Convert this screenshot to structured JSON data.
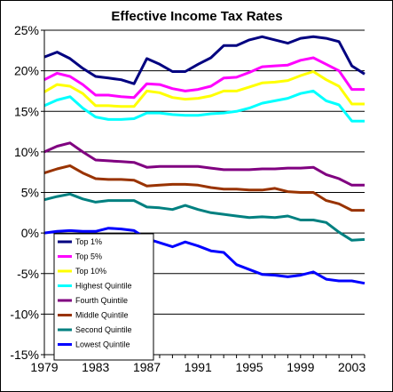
{
  "chart_data": {
    "type": "line",
    "title": "Effective Income Tax Rates",
    "xlabel": "",
    "ylabel": "",
    "x": [
      1979,
      1980,
      1981,
      1982,
      1983,
      1984,
      1985,
      1986,
      1987,
      1988,
      1989,
      1990,
      1991,
      1992,
      1993,
      1994,
      1995,
      1996,
      1997,
      1998,
      1999,
      2000,
      2001,
      2002,
      2003,
      2004
    ],
    "xticks": [
      1979,
      1983,
      1987,
      1991,
      1995,
      1999,
      2003
    ],
    "xtick_labels": [
      "1979",
      "1983",
      "1987",
      "1991",
      "1995",
      "1999",
      "2003"
    ],
    "xlim": [
      1979,
      2004
    ],
    "ylim": [
      -15,
      25
    ],
    "yticks": [
      -15,
      -10,
      -5,
      0,
      5,
      10,
      15,
      20,
      25
    ],
    "ytick_labels": [
      "-15%",
      "-10%",
      "-5%",
      "0%",
      "5%",
      "10%",
      "15%",
      "20%",
      "25%"
    ],
    "grid": "horizontal",
    "legend_position": "bottom-left",
    "series": [
      {
        "name": "Top 1%",
        "color": "#000080",
        "values": [
          21.7,
          22.3,
          21.5,
          20.3,
          19.3,
          19.1,
          18.9,
          18.4,
          21.5,
          20.8,
          19.9,
          19.9,
          20.8,
          21.6,
          23.1,
          23.1,
          23.8,
          24.2,
          23.8,
          23.4,
          24.0,
          24.2,
          24.0,
          23.6,
          20.6,
          19.6
        ]
      },
      {
        "name": "Top 5%",
        "color": "#ff00ff",
        "values": [
          18.9,
          19.7,
          19.3,
          18.3,
          17.0,
          17.0,
          16.8,
          16.7,
          18.4,
          18.3,
          17.8,
          17.5,
          17.7,
          18.1,
          19.1,
          19.2,
          19.8,
          20.5,
          20.6,
          20.7,
          21.3,
          21.6,
          20.8,
          20.0,
          17.7,
          17.7
        ]
      },
      {
        "name": "Top 10%",
        "color": "#ffff00",
        "values": [
          17.4,
          18.3,
          18.1,
          17.2,
          15.7,
          15.7,
          15.6,
          15.6,
          17.5,
          17.3,
          16.7,
          16.5,
          16.6,
          16.9,
          17.5,
          17.5,
          18.0,
          18.5,
          18.6,
          18.8,
          19.4,
          19.9,
          18.9,
          18.1,
          15.9,
          15.9
        ]
      },
      {
        "name": "Highest Quintile",
        "color": "#00ffff",
        "values": [
          15.7,
          16.4,
          16.8,
          15.4,
          14.3,
          14.0,
          14.0,
          14.1,
          14.8,
          14.8,
          14.6,
          14.5,
          14.5,
          14.7,
          14.8,
          15.0,
          15.4,
          16.0,
          16.3,
          16.6,
          17.2,
          17.5,
          16.3,
          15.8,
          13.8,
          13.8
        ]
      },
      {
        "name": "Fourth Quintile",
        "color": "#800080",
        "values": [
          10.0,
          10.7,
          11.1,
          10.0,
          9.0,
          8.9,
          8.8,
          8.7,
          8.1,
          8.2,
          8.2,
          8.2,
          8.2,
          8.0,
          7.8,
          7.8,
          7.8,
          7.9,
          7.9,
          8.0,
          8.0,
          8.1,
          7.2,
          6.7,
          5.9,
          5.9
        ]
      },
      {
        "name": "Middle Quintile",
        "color": "#993300",
        "values": [
          7.4,
          7.9,
          8.3,
          7.4,
          6.7,
          6.6,
          6.6,
          6.5,
          5.8,
          5.9,
          6.0,
          6.0,
          5.9,
          5.6,
          5.4,
          5.4,
          5.3,
          5.3,
          5.5,
          5.1,
          5.0,
          5.0,
          4.0,
          3.6,
          2.8,
          2.8
        ]
      },
      {
        "name": "Second Quintile",
        "color": "#008080",
        "values": [
          4.1,
          4.5,
          4.8,
          4.2,
          3.8,
          4.0,
          4.0,
          4.0,
          3.2,
          3.1,
          2.9,
          3.4,
          2.9,
          2.5,
          2.3,
          2.1,
          1.9,
          2.0,
          1.9,
          2.1,
          1.6,
          1.6,
          1.3,
          0.1,
          -0.9,
          -0.8
        ]
      },
      {
        "name": "Lowest Quintile",
        "color": "#0000ff",
        "values": [
          0.0,
          0.2,
          0.3,
          0.2,
          0.2,
          0.6,
          0.5,
          0.3,
          -0.7,
          -1.2,
          -1.7,
          -1.1,
          -1.6,
          -2.2,
          -2.4,
          -3.9,
          -4.5,
          -5.1,
          -5.2,
          -5.4,
          -5.2,
          -4.8,
          -5.7,
          -5.9,
          -5.9,
          -6.2
        ]
      }
    ]
  }
}
